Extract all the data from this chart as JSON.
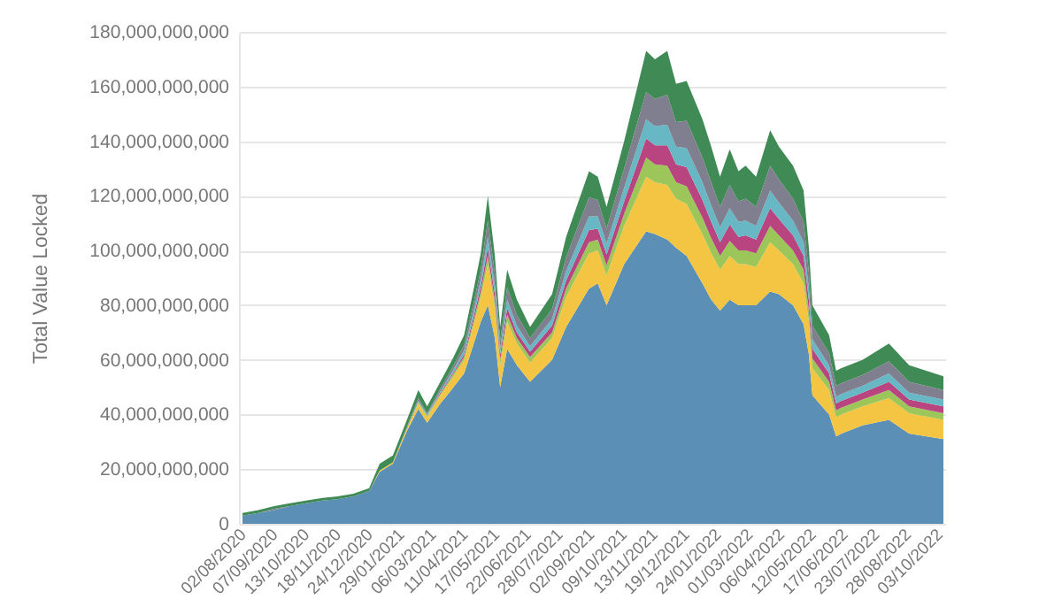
{
  "chart_data": {
    "type": "area",
    "stacked": true,
    "ylabel": "Total Value Locked",
    "x": [
      "2020-08-02",
      "2020-08-20",
      "2020-09-07",
      "2020-09-25",
      "2020-10-13",
      "2020-11-01",
      "2020-11-18",
      "2020-12-06",
      "2020-12-24",
      "2021-01-05",
      "2021-01-20",
      "2021-02-05",
      "2021-02-18",
      "2021-02-28",
      "2021-03-15",
      "2021-03-30",
      "2021-04-11",
      "2021-04-22",
      "2021-04-30",
      "2021-05-08",
      "2021-05-16",
      "2021-05-22",
      "2021-05-30",
      "2021-06-10",
      "2021-06-25",
      "2021-07-20",
      "2021-08-05",
      "2021-08-31",
      "2021-09-10",
      "2021-09-20",
      "2021-10-10",
      "2021-11-04",
      "2021-11-14",
      "2021-11-28",
      "2021-12-08",
      "2021-12-20",
      "2022-01-07",
      "2022-01-17",
      "2022-01-27",
      "2022-02-07",
      "2022-02-17",
      "2022-02-25",
      "2022-03-09",
      "2022-03-25",
      "2022-04-04",
      "2022-04-20",
      "2022-05-02",
      "2022-05-08",
      "2022-05-12",
      "2022-05-31",
      "2022-06-08",
      "2022-06-14",
      "2022-07-08",
      "2022-08-07",
      "2022-08-30",
      "2022-10-08"
    ],
    "series": [
      {
        "color": "#5b8fb5",
        "values": [
          3000000000.0,
          4000000000.0,
          5000000000.0,
          6500000000.0,
          7500000000.0,
          8500000000.0,
          9000000000.0,
          10000000000.0,
          12000000000.0,
          19000000000.0,
          22000000000.0,
          34000000000.0,
          42000000000.0,
          37000000000.0,
          44000000000.0,
          50000000000.0,
          55000000000.0,
          66000000000.0,
          74000000000.0,
          80000000000.0,
          68000000000.0,
          50000000000.0,
          64000000000.0,
          58000000000.0,
          52000000000.0,
          60000000000.0,
          72000000000.0,
          86000000000.0,
          88000000000.0,
          80000000000.0,
          95000000000.0,
          107000000000.0,
          106000000000.0,
          104000000000.0,
          101000000000.0,
          98000000000.0,
          88000000000.0,
          82000000000.0,
          78000000000.0,
          82000000000.0,
          80000000000.0,
          80000000000.0,
          80000000000.0,
          85000000000.0,
          84000000000.0,
          80000000000.0,
          73000000000.0,
          62000000000.0,
          47000000000.0,
          40000000000.0,
          32000000000.0,
          33000000000.0,
          36000000000.0,
          38000000000.0,
          33000000000.0,
          31000000000.0
        ]
      },
      {
        "color": "#f4c542",
        "values": [
          0,
          0,
          0,
          0,
          0,
          0,
          0,
          0,
          0,
          500000000.0,
          500000000.0,
          1000000000.0,
          2000000000.0,
          2000000000.0,
          3000000000.0,
          4000000000.0,
          5000000000.0,
          7000000000.0,
          9000000000.0,
          15000000000.0,
          11000000000.0,
          8000000000.0,
          10000000000.0,
          8000000000.0,
          7000000000.0,
          8000000000.0,
          11000000000.0,
          13000000000.0,
          12000000000.0,
          11000000000.0,
          14000000000.0,
          20000000000.0,
          19000000000.0,
          20000000000.0,
          18000000000.0,
          19000000000.0,
          18000000000.0,
          17000000000.0,
          15000000000.0,
          16000000000.0,
          15000000000.0,
          15000000000.0,
          14000000000.0,
          18000000000.0,
          16000000000.0,
          15000000000.0,
          15000000000.0,
          12000000000.0,
          10000000000.0,
          9000000000.0,
          7000000000.0,
          7000000000.0,
          7000000000.0,
          8000000000.0,
          7500000000.0,
          7000000000.0
        ]
      },
      {
        "color": "#9cc65a",
        "values": [
          0,
          0,
          0,
          0,
          0,
          0,
          0,
          0,
          0,
          0,
          0,
          0,
          500000000.0,
          500000000.0,
          500000000.0,
          1000000000.0,
          1000000000.0,
          1500000000.0,
          2000000000.0,
          3000000000.0,
          2500000000.0,
          2000000000.0,
          2500000000.0,
          2000000000.0,
          2000000000.0,
          2000000000.0,
          3000000000.0,
          4000000000.0,
          4000000000.0,
          3500000000.0,
          4500000000.0,
          7000000000.0,
          6500000000.0,
          7000000000.0,
          6000000000.0,
          6500000000.0,
          6000000000.0,
          5500000000.0,
          5000000000.0,
          5500000000.0,
          5000000000.0,
          5000000000.0,
          5000000000.0,
          6000000000.0,
          5500000000.0,
          5000000000.0,
          5000000000.0,
          4000000000.0,
          3500000000.0,
          3000000000.0,
          2500000000.0,
          2500000000.0,
          2500000000.0,
          3000000000.0,
          2500000000.0,
          2500000000.0
        ]
      },
      {
        "color": "#b8457f",
        "values": [
          0,
          0,
          0,
          0,
          0,
          0,
          0,
          0,
          0,
          0,
          0,
          0,
          0,
          0,
          500000000.0,
          500000000.0,
          1000000000.0,
          1500000000.0,
          2000000000.0,
          3000000000.0,
          2500000000.0,
          2000000000.0,
          2500000000.0,
          2000000000.0,
          2000000000.0,
          2500000000.0,
          3000000000.0,
          4500000000.0,
          4000000000.0,
          4000000000.0,
          4500000000.0,
          7000000000.0,
          7000000000.0,
          7500000000.0,
          6500000000.0,
          7000000000.0,
          6500000000.0,
          6000000000.0,
          5000000000.0,
          6000000000.0,
          5000000000.0,
          5500000000.0,
          5000000000.0,
          6500000000.0,
          6000000000.0,
          5500000000.0,
          5000000000.0,
          4000000000.0,
          3500000000.0,
          3000000000.0,
          2500000000.0,
          2500000000.0,
          2500000000.0,
          3000000000.0,
          2500000000.0,
          2500000000.0
        ]
      },
      {
        "color": "#67b7c4",
        "values": [
          0,
          0,
          0,
          0,
          0,
          0,
          0,
          0,
          0,
          0,
          0,
          0,
          500000000.0,
          500000000.0,
          500000000.0,
          1000000000.0,
          1500000000.0,
          2000000000.0,
          2500000000.0,
          4000000000.0,
          3000000000.0,
          2000000000.0,
          3000000000.0,
          2500000000.0,
          2000000000.0,
          2500000000.0,
          3500000000.0,
          5000000000.0,
          4500000000.0,
          4000000000.0,
          5000000000.0,
          7000000000.0,
          7000000000.0,
          7500000000.0,
          6500000000.0,
          7000000000.0,
          6500000000.0,
          6000000000.0,
          5500000000.0,
          6000000000.0,
          5500000000.0,
          5500000000.0,
          5000000000.0,
          6500000000.0,
          6000000000.0,
          5500000000.0,
          5000000000.0,
          4000000000.0,
          3500000000.0,
          3000000000.0,
          2500000000.0,
          2500000000.0,
          2500000000.0,
          3000000000.0,
          2500000000.0,
          2500000000.0
        ]
      },
      {
        "color": "#7f7f8f",
        "values": [
          0,
          0,
          500000000.0,
          0,
          0,
          0,
          0,
          0,
          0,
          0,
          0,
          500000000.0,
          1000000000.0,
          500000000.0,
          1000000000.0,
          1500000000.0,
          2000000000.0,
          3000000000.0,
          3500000000.0,
          6000000000.0,
          4500000000.0,
          3000000000.0,
          4500000000.0,
          4000000000.0,
          3000000000.0,
          3500000000.0,
          5000000000.0,
          7000000000.0,
          6000000000.0,
          5500000000.0,
          7000000000.0,
          10000000000.0,
          10000000000.0,
          11000000000.0,
          9000000000.0,
          10000000000.0,
          9000000000.0,
          8500000000.0,
          7500000000.0,
          8500000000.0,
          7500000000.0,
          8000000000.0,
          7000000000.0,
          9000000000.0,
          8500000000.0,
          8000000000.0,
          7500000000.0,
          6000000000.0,
          5000000000.0,
          4500000000.0,
          4000000000.0,
          4000000000.0,
          4000000000.0,
          4500000000.0,
          4000000000.0,
          3500000000.0
        ]
      },
      {
        "color": "#3f8a55",
        "values": [
          1000000000.0,
          1000000000.0,
          1000000000.0,
          1000000000.0,
          1000000000.0,
          1000000000.0,
          1000000000.0,
          1000000000.0,
          1000000000.0,
          2500000000.0,
          2500000000.0,
          2500000000.0,
          3000000000.0,
          2500000000.0,
          2500000000.0,
          3000000000.0,
          3500000000.0,
          5000000000.0,
          6000000000.0,
          9000000000.0,
          6500000000.0,
          5000000000.0,
          6500000000.0,
          5500000000.0,
          4000000000.0,
          5500000000.0,
          7500000000.0,
          9500000000.0,
          8500000000.0,
          8000000000.0,
          10000000000.0,
          15000000000.0,
          14500000000.0,
          16000000000.0,
          14000000000.0,
          14500000000.0,
          14000000000.0,
          13000000000.0,
          11000000000.0,
          13000000000.0,
          11000000000.0,
          12000000000.0,
          11000000000.0,
          13000000000.0,
          12000000000.0,
          12000000000.0,
          11500000000.0,
          9000000000.0,
          7500000000.0,
          6500000000.0,
          5500000000.0,
          5500000000.0,
          5500000000.0,
          6500000000.0,
          6000000000.0,
          5000000000.0
        ]
      }
    ],
    "xlim": [
      "2020-07-29",
      "2022-10-10"
    ],
    "xticks": [
      {
        "value": "2020-08-02",
        "label": "02/08/2020"
      },
      {
        "value": "2020-09-07",
        "label": "07/09/2020"
      },
      {
        "value": "2020-10-13",
        "label": "13/10/2020"
      },
      {
        "value": "2020-11-18",
        "label": "18/11/2020"
      },
      {
        "value": "2020-12-24",
        "label": "24/12/2020"
      },
      {
        "value": "2021-01-29",
        "label": "29/01/2021"
      },
      {
        "value": "2021-03-06",
        "label": "06/03/2021"
      },
      {
        "value": "2021-04-11",
        "label": "11/04/2021"
      },
      {
        "value": "2021-05-17",
        "label": "17/05/2021"
      },
      {
        "value": "2021-06-22",
        "label": "22/06/2021"
      },
      {
        "value": "2021-07-28",
        "label": "28/07/2021"
      },
      {
        "value": "2021-09-02",
        "label": "02/09/2021"
      },
      {
        "value": "2021-10-09",
        "label": "09/10/2021"
      },
      {
        "value": "2021-11-13",
        "label": "13/11/2021"
      },
      {
        "value": "2021-12-19",
        "label": "19/12/2021"
      },
      {
        "value": "2022-01-24",
        "label": "24/01/2022"
      },
      {
        "value": "2022-03-01",
        "label": "01/03/2022"
      },
      {
        "value": "2022-04-06",
        "label": "06/04/2022"
      },
      {
        "value": "2022-05-12",
        "label": "12/05/2022"
      },
      {
        "value": "2022-06-17",
        "label": "17/06/2022"
      },
      {
        "value": "2022-07-23",
        "label": "23/07/2022"
      },
      {
        "value": "2022-08-28",
        "label": "28/08/2022"
      },
      {
        "value": "2022-10-03",
        "label": "03/10/2022"
      }
    ],
    "ylim": [
      0,
      180000000000
    ],
    "yticks": [
      {
        "value": 0,
        "label": "0"
      },
      {
        "value": 20000000000,
        "label": "20,000,000,000"
      },
      {
        "value": 40000000000,
        "label": "40,000,000,000"
      },
      {
        "value": 60000000000,
        "label": "60,000,000,000"
      },
      {
        "value": 80000000000,
        "label": "80,000,000,000"
      },
      {
        "value": 100000000000,
        "label": "100,000,000,000"
      },
      {
        "value": 120000000000,
        "label": "120,000,000,000"
      },
      {
        "value": 140000000000,
        "label": "140,000,000,000"
      },
      {
        "value": 160000000000,
        "label": "160,000,000,000"
      },
      {
        "value": 180000000000,
        "label": "180,000,000,000"
      }
    ],
    "grid": "y"
  }
}
